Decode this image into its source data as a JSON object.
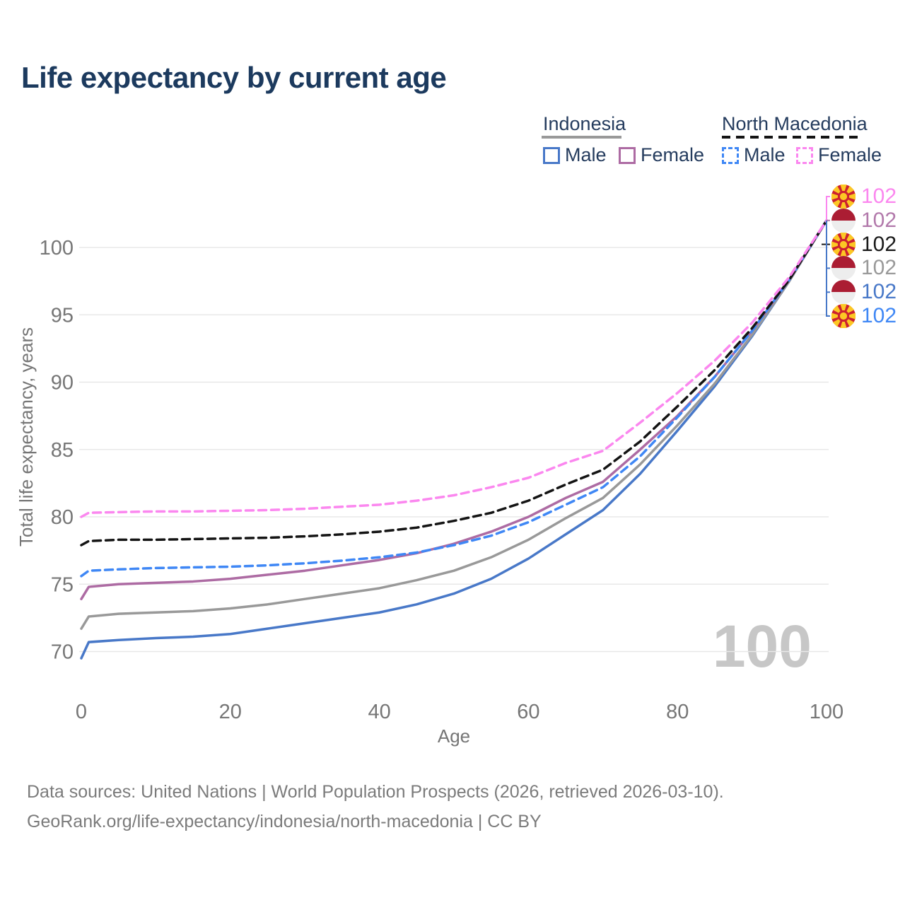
{
  "title": "Life expectancy by current age",
  "legend": {
    "groups": [
      {
        "label": "Indonesia",
        "line_style": "solid",
        "underline_color": "#999999",
        "items": [
          {
            "label": "Male",
            "color": "#4878c8"
          },
          {
            "label": "Female",
            "color": "#ad6ba3"
          }
        ]
      },
      {
        "label": "North Macedonia",
        "line_style": "dashed",
        "underline_color": "#141414",
        "items": [
          {
            "label": "Male",
            "color": "#3f87f5"
          },
          {
            "label": "Female",
            "color": "#fb87ef"
          }
        ]
      }
    ]
  },
  "chart_data": {
    "type": "line",
    "title": "Life expectancy by current age",
    "xlabel": "Age",
    "ylabel": "Total life expectancy, years",
    "x_ticks": [
      0,
      20,
      40,
      60,
      80,
      100
    ],
    "y_ticks": [
      70,
      75,
      80,
      85,
      90,
      95,
      100
    ],
    "xlim": [
      0,
      100
    ],
    "ylim": [
      68.5,
      103
    ],
    "grid": "horizontal",
    "legend_position": "top-right",
    "ages": [
      0,
      1,
      5,
      10,
      15,
      20,
      25,
      30,
      35,
      40,
      45,
      50,
      55,
      60,
      65,
      70,
      75,
      80,
      85,
      90,
      95,
      100
    ],
    "series": [
      {
        "name": "Indonesia Male",
        "country": "Indonesia",
        "sex": "Male",
        "color": "#4878c8",
        "dashed": false,
        "values": [
          69.5,
          70.7,
          70.85,
          71.0,
          71.1,
          71.3,
          71.7,
          72.1,
          72.5,
          72.9,
          73.5,
          74.3,
          75.4,
          76.9,
          78.7,
          80.5,
          83.2,
          86.4,
          89.7,
          93.4,
          97.5,
          102
        ]
      },
      {
        "name": "Indonesia (both sexes)",
        "country": "Indonesia",
        "sex": "Both",
        "color": "#999999",
        "dashed": false,
        "values": [
          71.7,
          72.6,
          72.8,
          72.9,
          73.0,
          73.2,
          73.5,
          73.9,
          74.3,
          74.7,
          75.3,
          76.0,
          77.0,
          78.3,
          79.9,
          81.4,
          83.9,
          86.8,
          89.9,
          93.5,
          97.5,
          102
        ]
      },
      {
        "name": "Indonesia Female",
        "country": "Indonesia",
        "sex": "Female",
        "color": "#ad6ba3",
        "dashed": false,
        "values": [
          73.9,
          74.8,
          75.0,
          75.1,
          75.2,
          75.4,
          75.7,
          76.0,
          76.4,
          76.8,
          77.3,
          78.0,
          78.9,
          80.0,
          81.4,
          82.6,
          85.0,
          87.5,
          90.4,
          93.8,
          97.6,
          102
        ]
      },
      {
        "name": "North Macedonia Male",
        "country": "North Macedonia",
        "sex": "Male",
        "color": "#3f87f5",
        "dashed": true,
        "values": [
          75.6,
          76.0,
          76.1,
          76.2,
          76.25,
          76.3,
          76.4,
          76.55,
          76.75,
          77.0,
          77.35,
          77.9,
          78.6,
          79.6,
          80.9,
          82.2,
          84.5,
          87.4,
          90.4,
          93.8,
          97.6,
          102
        ]
      },
      {
        "name": "North Macedonia (both sexes)",
        "country": "North Macedonia",
        "sex": "Both",
        "color": "#141414",
        "dashed": true,
        "values": [
          77.9,
          78.2,
          78.3,
          78.3,
          78.35,
          78.4,
          78.45,
          78.55,
          78.7,
          78.9,
          79.2,
          79.7,
          80.3,
          81.2,
          82.4,
          83.5,
          85.6,
          88.2,
          90.9,
          94.0,
          97.6,
          102
        ]
      },
      {
        "name": "North Macedonia Female",
        "country": "North Macedonia",
        "sex": "Female",
        "color": "#fb87ef",
        "dashed": true,
        "values": [
          80.0,
          80.3,
          80.35,
          80.4,
          80.4,
          80.45,
          80.5,
          80.6,
          80.75,
          80.9,
          81.2,
          81.6,
          82.2,
          82.9,
          84.0,
          84.9,
          87.0,
          89.2,
          91.6,
          94.4,
          97.8,
          102
        ]
      }
    ],
    "end_labels": [
      {
        "value": "102",
        "flag": "north-macedonia",
        "color": "#fb87ef",
        "series": "North Macedonia Female"
      },
      {
        "value": "102",
        "flag": "indonesia",
        "color": "#b279ab",
        "series": "Indonesia Female"
      },
      {
        "value": "102",
        "flag": "north-macedonia",
        "color": "#1a1a1a",
        "series": "North Macedonia (both sexes)"
      },
      {
        "value": "102",
        "flag": "indonesia",
        "color": "#999999",
        "series": "Indonesia (both sexes)"
      },
      {
        "value": "102",
        "flag": "indonesia",
        "color": "#4878c8",
        "series": "Indonesia Male"
      },
      {
        "value": "102",
        "flag": "north-macedonia",
        "color": "#3f87f5",
        "series": "North Macedonia Male"
      }
    ],
    "watermark": "100"
  },
  "footer": {
    "line1": "Data sources: United Nations | World Population Prospects (2026, retrieved 2026-03-10).",
    "line2": "GeoRank.org/life-expectancy/indonesia/north-macedonia | CC BY"
  }
}
